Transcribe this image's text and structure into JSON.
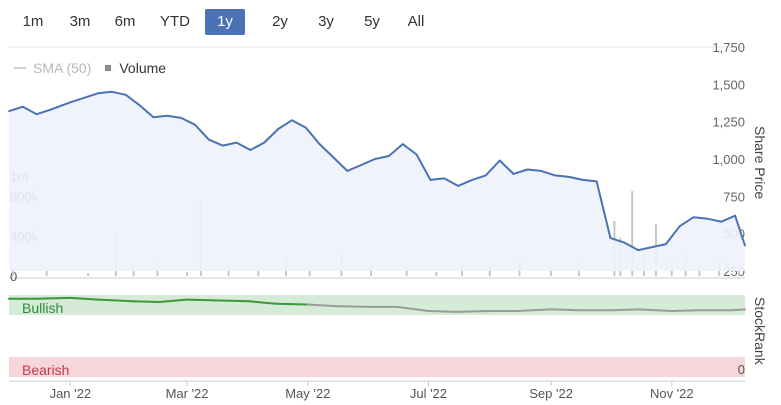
{
  "range_selector": {
    "buttons": [
      "1m",
      "3m",
      "6m",
      "YTD",
      "1y",
      "2y",
      "3y",
      "5y",
      "All"
    ],
    "active": "1y"
  },
  "legend": {
    "sma_label": "SMA (50)",
    "volume_label": "Volume"
  },
  "colors": {
    "price_line": "#4a72b5",
    "price_fill": "#eef2f9",
    "volume_bar": "#c6c6c6",
    "bullish_band": "#d6ead8",
    "bearish_band": "#f6d6da",
    "bullish_text": "#2e8b3a",
    "bearish_text": "#c23b4c",
    "stockrank_bullish": "#3a9a3a",
    "stockrank_neutral": "#9a9a9a"
  },
  "chart_data": [
    {
      "type": "line",
      "name": "share-price",
      "ylabel": "Share Price",
      "ylim": [
        250,
        1750
      ],
      "yticks": [
        "1,750",
        "1,500",
        "1,250",
        "1,000",
        "750",
        "500",
        "250"
      ],
      "xticks": [
        "Jan '22",
        "Mar '22",
        "May '22",
        "Jul '22",
        "Sep '22",
        "Nov '22"
      ],
      "x": [
        "2021-12-01",
        "2021-12-08",
        "2021-12-15",
        "2021-12-22",
        "2022-01-01",
        "2022-01-08",
        "2022-01-15",
        "2022-01-22",
        "2022-01-29",
        "2022-02-05",
        "2022-02-12",
        "2022-02-19",
        "2022-02-26",
        "2022-03-05",
        "2022-03-12",
        "2022-03-19",
        "2022-03-26",
        "2022-04-02",
        "2022-04-09",
        "2022-04-16",
        "2022-04-23",
        "2022-04-30",
        "2022-05-07",
        "2022-05-14",
        "2022-05-21",
        "2022-05-28",
        "2022-06-04",
        "2022-06-11",
        "2022-06-18",
        "2022-06-25",
        "2022-07-02",
        "2022-07-09",
        "2022-07-16",
        "2022-07-23",
        "2022-07-30",
        "2022-08-06",
        "2022-08-13",
        "2022-08-20",
        "2022-08-27",
        "2022-09-03",
        "2022-09-10",
        "2022-09-17",
        "2022-09-24",
        "2022-10-01",
        "2022-10-08",
        "2022-10-15",
        "2022-10-22",
        "2022-10-29",
        "2022-11-05",
        "2022-11-12",
        "2022-11-19",
        "2022-11-26",
        "2022-12-03",
        "2022-12-08"
      ],
      "values": [
        1320,
        1350,
        1300,
        1330,
        1380,
        1410,
        1440,
        1450,
        1430,
        1360,
        1280,
        1290,
        1275,
        1230,
        1130,
        1090,
        1110,
        1060,
        1110,
        1200,
        1260,
        1210,
        1100,
        1010,
        920,
        960,
        1000,
        1020,
        1100,
        1030,
        860,
        870,
        820,
        860,
        890,
        990,
        900,
        930,
        920,
        890,
        880,
        860,
        850,
        470,
        440,
        390,
        410,
        430,
        550,
        610,
        600,
        580,
        620,
        420
      ]
    },
    {
      "type": "bar",
      "name": "volume",
      "ylim": [
        0,
        1200000
      ],
      "yticks": [
        "1m",
        "800k",
        "400k",
        "0"
      ],
      "x": [
        "2021-12-03",
        "2021-12-20",
        "2022-01-10",
        "2022-01-24",
        "2022-02-02",
        "2022-02-14",
        "2022-03-01",
        "2022-03-08",
        "2022-03-22",
        "2022-04-06",
        "2022-04-20",
        "2022-05-02",
        "2022-05-18",
        "2022-06-02",
        "2022-06-20",
        "2022-07-05",
        "2022-07-18",
        "2022-08-01",
        "2022-08-16",
        "2022-09-01",
        "2022-09-15",
        "2022-10-03",
        "2022-10-06",
        "2022-10-12",
        "2022-10-18",
        "2022-10-24",
        "2022-11-01",
        "2022-11-08",
        "2022-11-15",
        "2022-11-25",
        "2022-12-05"
      ],
      "values": [
        80000,
        60000,
        30000,
        420000,
        90000,
        140000,
        40000,
        750000,
        90000,
        60000,
        180000,
        50000,
        240000,
        110000,
        70000,
        40000,
        120000,
        90000,
        160000,
        70000,
        150000,
        550000,
        380000,
        850000,
        220000,
        520000,
        140000,
        260000,
        90000,
        160000,
        120000
      ]
    },
    {
      "type": "line",
      "name": "stockrank",
      "ylabel": "StockRank",
      "ylim": [
        0,
        100
      ],
      "yticks": [
        "0"
      ],
      "band_labels": {
        "bullish": "Bullish",
        "bearish": "Bearish"
      },
      "x": [
        "2021-12-01",
        "2021-12-15",
        "2022-01-01",
        "2022-01-15",
        "2022-02-01",
        "2022-02-15",
        "2022-03-01",
        "2022-03-15",
        "2022-04-01",
        "2022-04-15",
        "2022-05-01",
        "2022-05-15",
        "2022-06-01",
        "2022-06-15",
        "2022-07-01",
        "2022-07-15",
        "2022-08-01",
        "2022-08-15",
        "2022-09-01",
        "2022-09-15",
        "2022-10-01",
        "2022-10-15",
        "2022-11-01",
        "2022-11-15",
        "2022-12-01",
        "2022-12-08"
      ],
      "values": [
        93,
        93,
        94,
        92,
        90,
        89,
        92,
        91,
        90,
        87,
        86,
        84,
        83,
        83,
        78,
        77,
        78,
        78,
        80,
        79,
        79,
        80,
        78,
        79,
        79,
        80
      ],
      "bullish_threshold": 85
    }
  ]
}
